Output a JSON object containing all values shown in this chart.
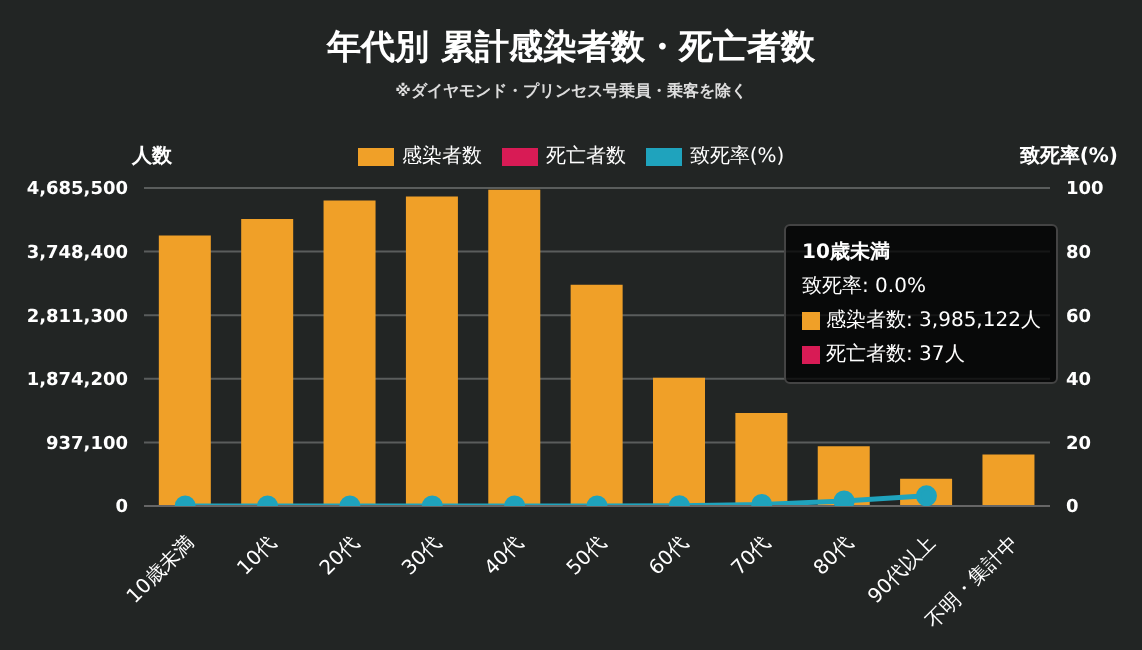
{
  "chart_data": {
    "type": "bar",
    "title": "年代別 累計感染者数・死亡者数",
    "subtitle": "※ダイヤモンド・プリンセス号乗員・乗客を除く",
    "ylabel": "人数",
    "y2label": "致死率(%)",
    "categories": [
      "10歳未満",
      "10代",
      "20代",
      "30代",
      "40代",
      "50代",
      "60代",
      "70代",
      "80代",
      "90代以上",
      "不明・集計中"
    ],
    "stacked": true,
    "series": [
      {
        "name": "感染者数",
        "color": "#f0a028",
        "values": [
          3985122,
          4230000,
          4500000,
          4560000,
          4660000,
          3260000,
          1890000,
          1370000,
          880000,
          400000,
          760000
        ]
      },
      {
        "name": "死亡者数",
        "color": "#d81b55",
        "values": [
          37,
          null,
          null,
          null,
          null,
          null,
          null,
          null,
          null,
          null,
          null
        ]
      },
      {
        "name": "致死率(%)",
        "type": "line",
        "axis": "y2",
        "color": "#1fa3bd",
        "values": [
          0.0,
          0,
          0,
          0,
          0,
          0,
          0.1,
          0.5,
          1.6,
          3.2,
          null
        ]
      }
    ],
    "ylim": [
      0,
      4685500
    ],
    "yticks": [
      0,
      {
        "value": 937100,
        "label": "937,100"
      },
      {
        "value": 1874200,
        "label": "1,874,200"
      },
      {
        "value": 2811300,
        "label": "2,811,300"
      },
      {
        "value": 3748400,
        "label": "3,748,400"
      },
      {
        "value": 4685500,
        "label": "4,685,500"
      }
    ],
    "y2lim": [
      0,
      100
    ],
    "y2ticks": [
      0,
      20,
      40,
      60,
      80,
      100
    ],
    "grid": "y",
    "legend": "top",
    "marker": "circle",
    "annotations": [
      "10歳未満",
      "致死率: 0.0%",
      "感染者数: 3,985,122人",
      "死亡者数: 37人"
    ]
  }
}
